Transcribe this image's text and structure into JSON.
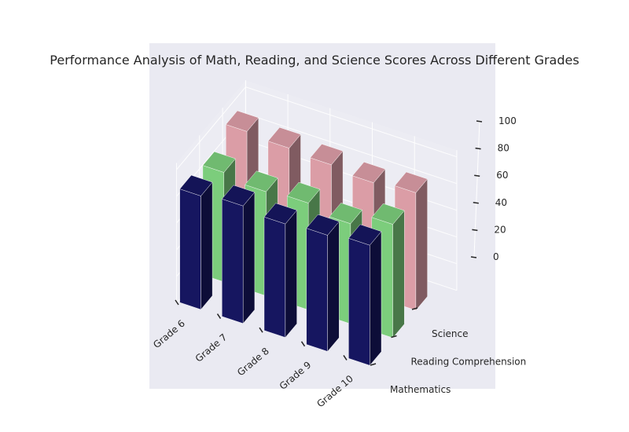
{
  "chart_data": {
    "type": "bar",
    "subtype": "3d-bar",
    "title": "Performance Analysis of Math, Reading, and Science Scores Across Different Grades",
    "categories": [
      "Grade 6",
      "Grade 7",
      "Grade 8",
      "Grade 9",
      "Grade 10"
    ],
    "series": [
      {
        "name": "Mathematics",
        "values": [
          85,
          88,
          85,
          87,
          90
        ],
        "color": "#191970"
      },
      {
        "name": "Reading Comprehension",
        "values": [
          82,
          78,
          80,
          75,
          85
        ],
        "color": "#90ee90"
      },
      {
        "name": "Science",
        "values": [
          92,
          90,
          88,
          85,
          88
        ],
        "color": "#ffb6c1"
      }
    ],
    "zlim": [
      0,
      100
    ],
    "z_ticks": [
      0,
      20,
      40,
      60,
      80,
      100
    ],
    "z_tick_labels": [
      "0",
      "20",
      "40",
      "60",
      "80",
      "100"
    ],
    "grid": true,
    "background": "#eaeaf2"
  }
}
